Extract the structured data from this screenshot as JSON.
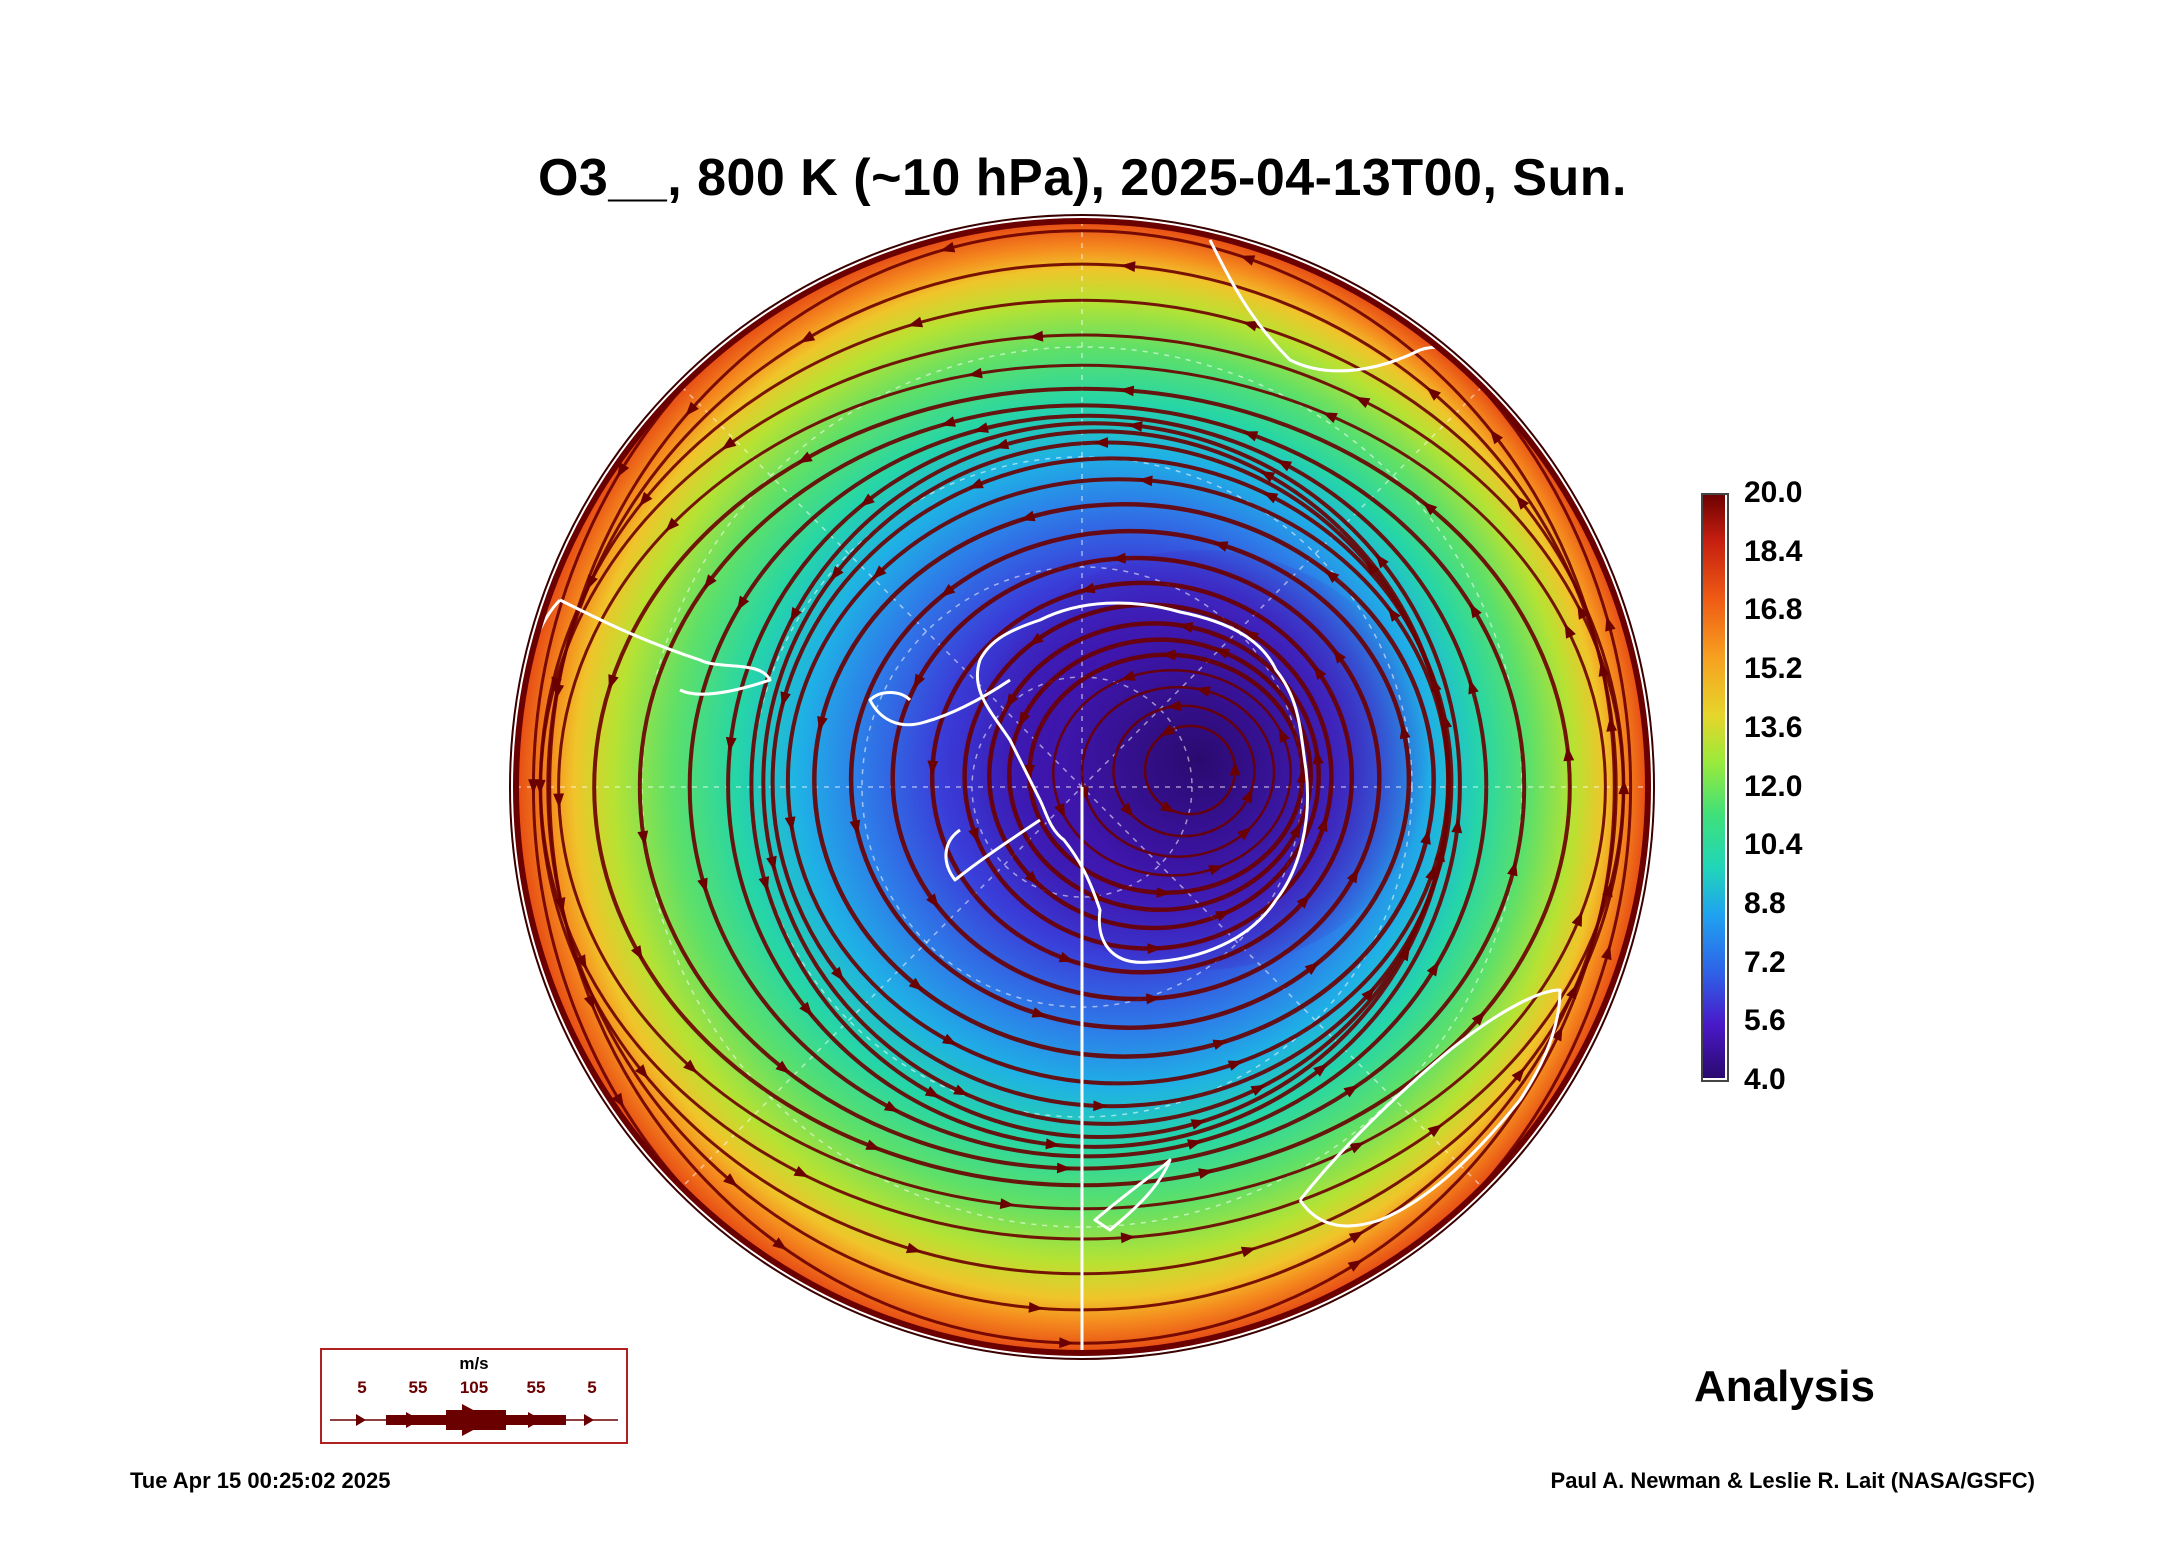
{
  "title": "O3__, 800 K (~10 hPa), 2025-04-13T00, Sun.",
  "colorbar": {
    "labels": [
      "20.0",
      "18.4",
      "16.8",
      "15.2",
      "13.6",
      "12.0",
      "10.4",
      "8.8",
      "7.2",
      "5.6",
      "4.0"
    ],
    "min": 4.0,
    "max": 20.0
  },
  "analysis_label": "Analysis",
  "timestamp": "Tue Apr 15 00:25:02 2025",
  "credit": "Paul A. Newman & Leslie R. Lait (NASA/GSFC)",
  "wind_legend": {
    "unit": "m/s",
    "ticks": [
      "5",
      "55",
      "105",
      "55",
      "5"
    ]
  },
  "colors": {
    "streamline": "#6a0000",
    "coastline": "#ffffff",
    "colormap": [
      "#2a0a6e",
      "#4a18c8",
      "#2e62e8",
      "#1fa3f0",
      "#20d6b8",
      "#3fe07a",
      "#9aea3a",
      "#e6d52a",
      "#f7a020",
      "#ef5a14",
      "#c41e10",
      "#6a0000"
    ]
  }
}
